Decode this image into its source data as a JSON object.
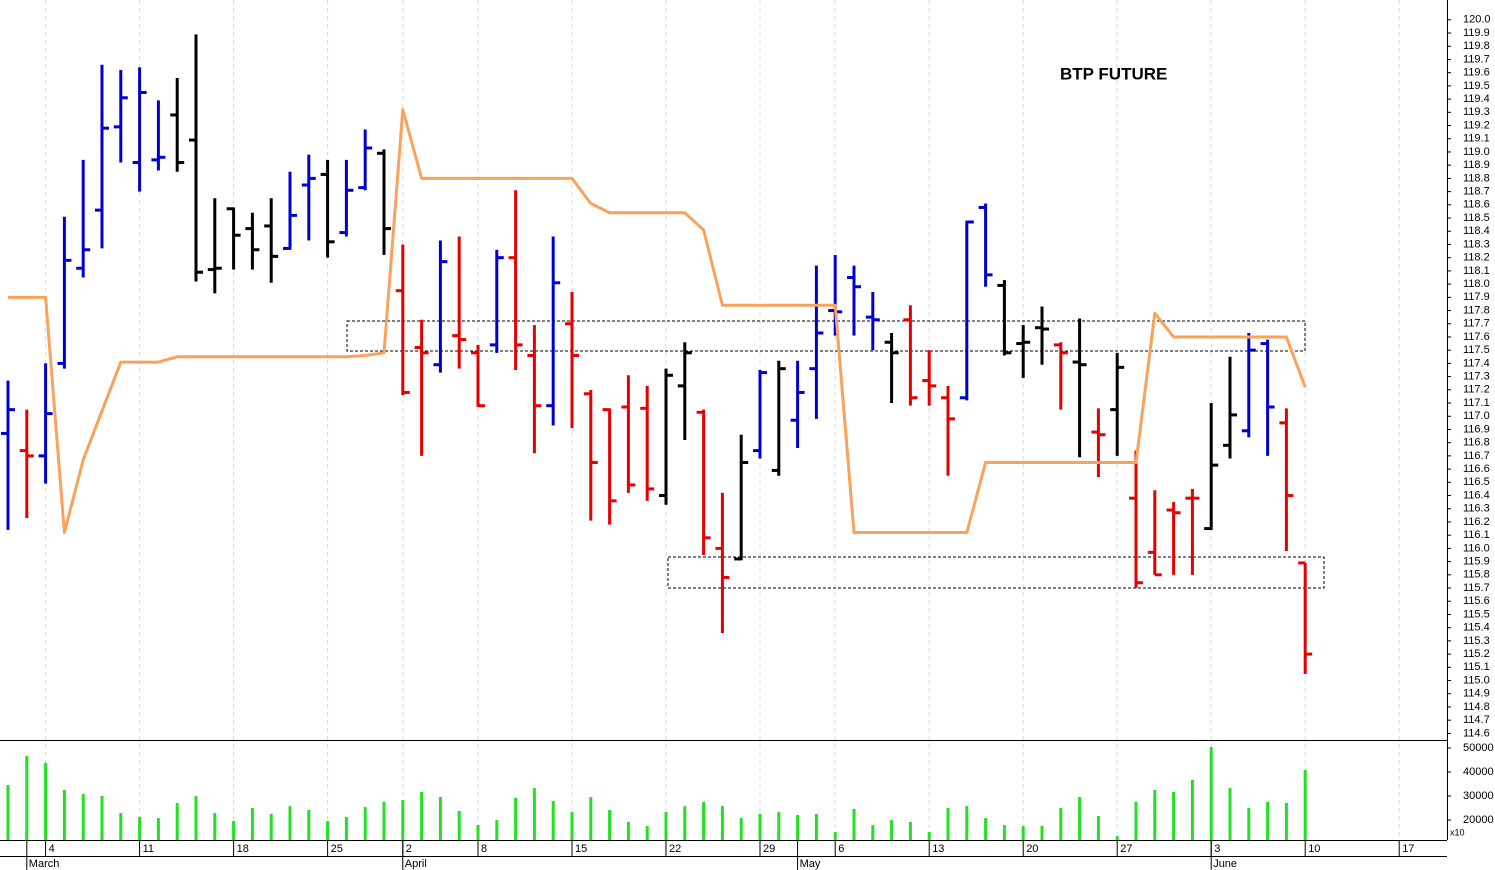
{
  "chart_data": [
    {
      "type": "ohlc",
      "title": "BTP FUTURE",
      "categories": [
        null,
        null,
        "4",
        null,
        null,
        null,
        null,
        "11",
        null,
        null,
        null,
        null,
        "18",
        null,
        null,
        null,
        null,
        "25",
        null,
        null,
        null,
        "2",
        null,
        null,
        null,
        "8",
        null,
        null,
        null,
        null,
        "15",
        null,
        null,
        null,
        null,
        "22",
        null,
        null,
        null,
        null,
        "29",
        null,
        null,
        null,
        "6",
        null,
        null,
        null,
        null,
        "13",
        null,
        null,
        null,
        null,
        "20",
        null,
        null,
        null,
        null,
        "27",
        null,
        null,
        null,
        null,
        "3",
        null,
        null,
        null,
        null,
        "10",
        null,
        null,
        null,
        null,
        "17"
      ],
      "months": [
        null,
        "March",
        null,
        null,
        null,
        null,
        null,
        null,
        null,
        null,
        null,
        null,
        null,
        null,
        null,
        null,
        null,
        null,
        null,
        null,
        null,
        "April",
        null,
        null,
        null,
        null,
        null,
        null,
        null,
        null,
        null,
        null,
        null,
        null,
        null,
        null,
        null,
        null,
        null,
        null,
        null,
        null,
        "May",
        null,
        null,
        null,
        null,
        null,
        null,
        null,
        null,
        null,
        null,
        null,
        null,
        null,
        null,
        null,
        null,
        null,
        null,
        null,
        null,
        null,
        "June",
        null,
        null,
        null,
        null,
        null,
        null,
        null,
        null,
        null,
        null
      ],
      "open": [
        116.87,
        116.74,
        116.7,
        117.4,
        118.12,
        118.56,
        119.19,
        118.92,
        118.94,
        119.28,
        119.09,
        118.11,
        118.57,
        118.42,
        118.44,
        118.27,
        118.75,
        118.83,
        118.39,
        118.73,
        118.99,
        117.95,
        117.52,
        117.39,
        117.61,
        117.48,
        117.54,
        118.2,
        117.46,
        117.08,
        117.7,
        117.17,
        117.05,
        117.07,
        117.06,
        116.4,
        117.23,
        117.03,
        116.0,
        115.92,
        116.74,
        116.59,
        116.97,
        117.36,
        117.8,
        118.05,
        117.75,
        117.56,
        117.73,
        117.27,
        117.14,
        117.14,
        118.58,
        117.99,
        117.55,
        117.67,
        117.54,
        117.41,
        116.88,
        117.05,
        116.38,
        115.97,
        116.29,
        116.38,
        116.15,
        116.78,
        116.89,
        117.55,
        116.95,
        115.89,
        null,
        null,
        null,
        null,
        null
      ],
      "high": [
        117.27,
        117.05,
        117.4,
        118.51,
        118.94,
        119.66,
        119.62,
        119.64,
        119.39,
        119.56,
        119.89,
        118.65,
        118.58,
        118.54,
        118.65,
        118.85,
        118.98,
        118.94,
        118.94,
        119.17,
        119.02,
        118.3,
        117.73,
        118.33,
        118.36,
        117.54,
        118.26,
        118.71,
        117.69,
        118.36,
        117.94,
        117.2,
        117.06,
        117.31,
        117.23,
        117.36,
        117.56,
        117.05,
        116.42,
        116.86,
        117.35,
        117.42,
        117.42,
        118.14,
        118.22,
        118.14,
        117.94,
        117.63,
        117.84,
        117.5,
        117.23,
        118.48,
        118.61,
        118.03,
        117.69,
        117.83,
        117.56,
        117.74,
        117.06,
        117.48,
        116.74,
        116.44,
        116.35,
        116.45,
        117.1,
        117.45,
        117.63,
        117.58,
        117.06,
        115.89,
        null,
        null,
        null,
        null,
        null
      ],
      "low": [
        116.14,
        116.23,
        116.49,
        117.36,
        118.05,
        118.27,
        118.92,
        118.7,
        118.86,
        118.85,
        118.02,
        117.93,
        118.11,
        118.11,
        118.01,
        118.26,
        118.33,
        118.2,
        118.36,
        118.71,
        118.22,
        117.16,
        116.7,
        117.33,
        117.36,
        117.07,
        117.48,
        117.35,
        116.72,
        116.93,
        116.91,
        116.21,
        116.18,
        116.42,
        116.36,
        116.33,
        116.82,
        115.95,
        115.36,
        115.91,
        116.68,
        116.55,
        116.76,
        116.98,
        117.61,
        117.61,
        117.5,
        117.1,
        117.08,
        117.08,
        116.55,
        117.12,
        117.98,
        117.46,
        117.29,
        117.39,
        117.05,
        116.69,
        116.54,
        116.7,
        115.7,
        115.8,
        115.8,
        115.8,
        116.14,
        116.68,
        116.84,
        116.7,
        115.98,
        115.05,
        null,
        null,
        null,
        null,
        null
      ],
      "close": [
        117.05,
        116.7,
        117.02,
        118.18,
        118.26,
        119.18,
        119.41,
        119.45,
        118.96,
        118.92,
        118.09,
        118.12,
        118.37,
        118.26,
        118.21,
        118.52,
        118.8,
        118.32,
        118.71,
        119.03,
        118.42,
        117.18,
        117.48,
        118.17,
        117.58,
        117.08,
        118.2,
        117.54,
        117.08,
        118.01,
        117.46,
        116.65,
        116.36,
        116.48,
        116.45,
        117.31,
        117.48,
        116.08,
        115.78,
        116.65,
        117.33,
        117.36,
        117.18,
        117.63,
        117.79,
        117.98,
        117.73,
        117.48,
        117.14,
        117.23,
        116.98,
        118.47,
        118.07,
        117.48,
        117.56,
        117.66,
        117.48,
        117.39,
        116.86,
        117.37,
        115.74,
        115.8,
        116.27,
        116.38,
        116.63,
        117.01,
        117.5,
        117.07,
        116.4,
        115.2,
        null,
        null,
        null,
        null,
        null
      ],
      "colors": [
        "#0000d0",
        "#e60000",
        "#0000d0",
        "#0000d0",
        "#0000d0",
        "#0000d0",
        "#0000d0",
        "#0000d0",
        "#0000d0",
        "#000000",
        "#000000",
        "#000000",
        "#000000",
        "#000000",
        "#000000",
        "#0000d0",
        "#0000d0",
        "#000000",
        "#0000d0",
        "#0000d0",
        "#000000",
        "#e60000",
        "#e60000",
        "#0000d0",
        "#e60000",
        "#e60000",
        "#0000d0",
        "#e60000",
        "#e60000",
        "#0000d0",
        "#e60000",
        "#e60000",
        "#e60000",
        "#e60000",
        "#e60000",
        "#000000",
        "#000000",
        "#e60000",
        "#e60000",
        "#000000",
        "#0000d0",
        "#000000",
        "#0000d0",
        "#0000d0",
        "#0000d0",
        "#0000d0",
        "#0000d0",
        "#000000",
        "#e60000",
        "#e60000",
        "#e60000",
        "#0000d0",
        "#0000d0",
        "#000000",
        "#000000",
        "#000000",
        "#e60000",
        "#000000",
        "#e60000",
        "#000000",
        "#e60000",
        "#e60000",
        "#e60000",
        "#e60000",
        "#000000",
        "#000000",
        "#0000d0",
        "#0000d0",
        "#e60000",
        "#e60000",
        null,
        null,
        null,
        null,
        null
      ],
      "line": {
        "color": "#f7a35c",
        "values": [
          117.9,
          117.9,
          117.9,
          116.12,
          116.67,
          117.04,
          117.41,
          117.41,
          117.41,
          117.45,
          117.45,
          117.45,
          117.45,
          117.45,
          117.45,
          117.45,
          117.45,
          117.45,
          117.45,
          117.46,
          117.48,
          119.32,
          118.8,
          118.8,
          118.8,
          118.8,
          118.8,
          118.8,
          118.8,
          118.8,
          118.8,
          118.61,
          118.54,
          118.54,
          118.54,
          118.54,
          118.54,
          118.41,
          117.84,
          117.84,
          117.84,
          117.84,
          117.84,
          117.84,
          117.84,
          116.12,
          116.12,
          116.12,
          116.12,
          116.12,
          116.12,
          116.12,
          116.65,
          116.65,
          116.65,
          116.65,
          116.65,
          116.65,
          116.65,
          116.65,
          116.65,
          117.78,
          117.6,
          117.6,
          117.6,
          117.6,
          117.6,
          117.6,
          117.6,
          117.22,
          null,
          null,
          null,
          null,
          null
        ]
      },
      "ylim": [
        114.55,
        120.15
      ],
      "yticks": [
        114.6,
        114.7,
        114.8,
        114.9,
        {
          "value": 115,
          "label": "115.0"
        },
        115.1,
        115.2,
        115.3,
        115.4,
        115.5,
        115.6,
        115.7,
        115.8,
        115.9,
        {
          "value": 116,
          "label": "116.0"
        },
        116.1,
        116.2,
        116.3,
        116.4,
        116.5,
        116.6,
        116.7,
        116.8,
        116.9,
        {
          "value": 117,
          "label": "117.0"
        },
        117.1,
        117.2,
        117.3,
        117.4,
        117.5,
        117.6,
        117.7,
        117.8,
        117.9,
        {
          "value": 118,
          "label": "118.0"
        },
        118.1,
        118.2,
        118.3,
        118.4,
        118.5,
        118.6,
        118.7,
        118.8,
        118.9,
        {
          "value": 119,
          "label": "119.0"
        },
        119.1,
        119.2,
        119.3,
        119.4,
        119.5,
        119.6,
        119.7,
        119.8,
        119.9,
        {
          "value": 120,
          "label": "120.0"
        }
      ],
      "grid": true
    },
    {
      "type": "bar",
      "color": "#22e022",
      "unit": "x10",
      "values": [
        34600,
        46700,
        43800,
        32500,
        30800,
        30000,
        22900,
        21300,
        20800,
        27100,
        30000,
        22900,
        19600,
        25000,
        22500,
        25800,
        24200,
        19600,
        21300,
        25400,
        27500,
        28300,
        31700,
        29600,
        23800,
        17900,
        20000,
        29200,
        33300,
        27900,
        23300,
        29600,
        24200,
        19200,
        17500,
        23300,
        25800,
        27500,
        25800,
        20800,
        22500,
        23300,
        22100,
        22500,
        15000,
        24600,
        17900,
        20000,
        19200,
        15000,
        25000,
        25800,
        20800,
        17900,
        17500,
        17500,
        25000,
        29600,
        21700,
        13300,
        27500,
        32500,
        31700,
        36700,
        50400,
        33300,
        25000,
        27500,
        27100,
        40800,
        null,
        null,
        null,
        null,
        null
      ],
      "ylim": [
        11700,
        52900
      ],
      "yticks": [
        20000,
        30000,
        40000,
        50000
      ]
    }
  ]
}
